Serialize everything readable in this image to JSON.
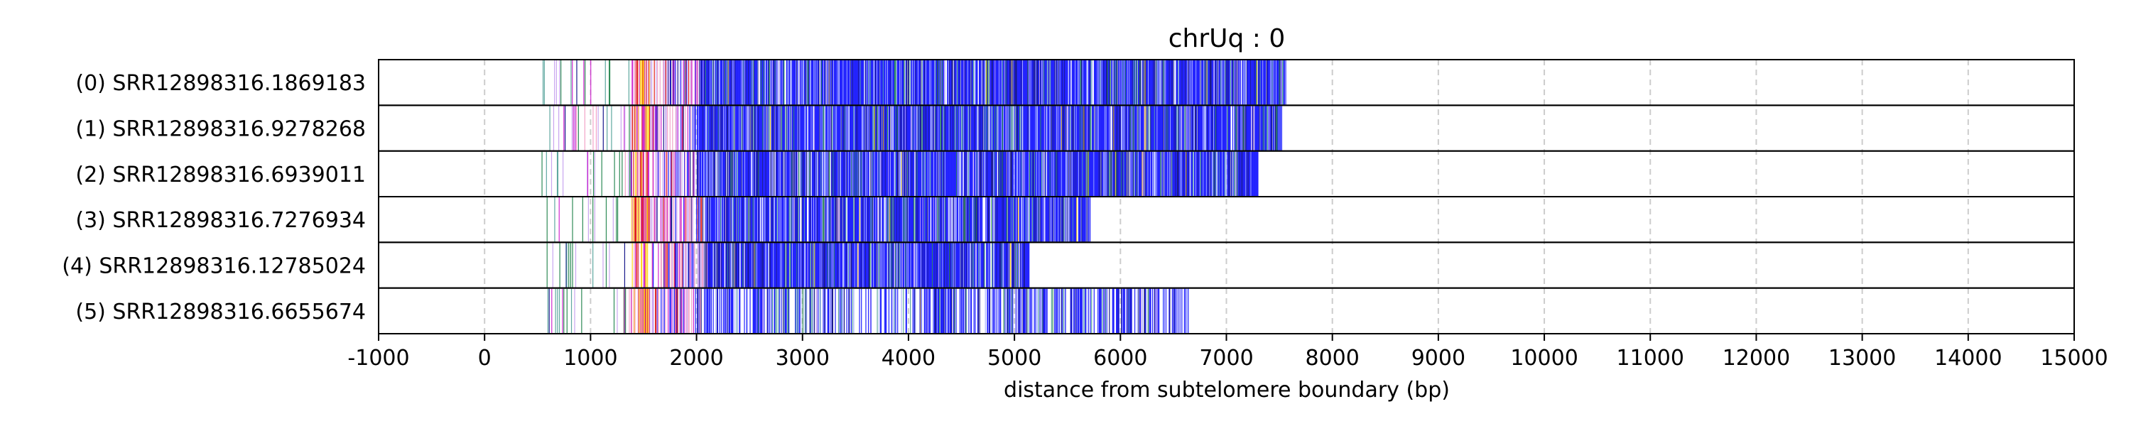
{
  "chart_data": {
    "type": "heatmap",
    "title": "chrUq : 0",
    "xlabel": "distance from subtelomere boundary (bp)",
    "ylabel": "",
    "xlim": [
      -1000,
      15000
    ],
    "xticks": [
      -1000,
      0,
      1000,
      2000,
      3000,
      4000,
      5000,
      6000,
      7000,
      8000,
      9000,
      10000,
      11000,
      12000,
      13000,
      14000,
      15000
    ],
    "xtick_labels": [
      "-1000",
      "0",
      "1000",
      "2000",
      "3000",
      "4000",
      "5000",
      "6000",
      "7000",
      "8000",
      "9000",
      "10000",
      "11000",
      "12000",
      "13000",
      "14000",
      "15000"
    ],
    "grid": {
      "x": true,
      "style": "dashed"
    },
    "colors": {
      "blue": "#2323ff",
      "lightblue": "#a9b4ff",
      "green": "#2e8b57",
      "red": "#e0201c",
      "magenta": "#d02bd0",
      "yellow": "#ffd21e",
      "pink": "#f2a3c8",
      "lavender": "#c9a6f0",
      "darkblue": "#1a1a8c",
      "teal": "#5fa8a0"
    },
    "reads": [
      {
        "label": "(0) SRR12898316.1869183",
        "start": 530,
        "end": 7560,
        "dense_start": 2020,
        "dense_density": 0.9,
        "seed": 11
      },
      {
        "label": "(1) SRR12898316.9278268",
        "start": 540,
        "end": 7520,
        "dense_start": 1980,
        "dense_density": 0.9,
        "seed": 23
      },
      {
        "label": "(2) SRR12898316.6939011",
        "start": 520,
        "end": 7300,
        "dense_start": 2000,
        "dense_density": 0.88,
        "seed": 37
      },
      {
        "label": "(3) SRR12898316.7276934",
        "start": 550,
        "end": 5720,
        "dense_start": 2080,
        "dense_density": 0.88,
        "seed": 41
      },
      {
        "label": "(4) SRR12898316.12785024",
        "start": 580,
        "end": 5140,
        "dense_start": 2100,
        "dense_density": 0.88,
        "seed": 53
      },
      {
        "label": "(5) SRR12898316.6655674",
        "start": 570,
        "end": 6650,
        "dense_start": 2050,
        "dense_density": 0.45,
        "seed": 67
      }
    ]
  }
}
